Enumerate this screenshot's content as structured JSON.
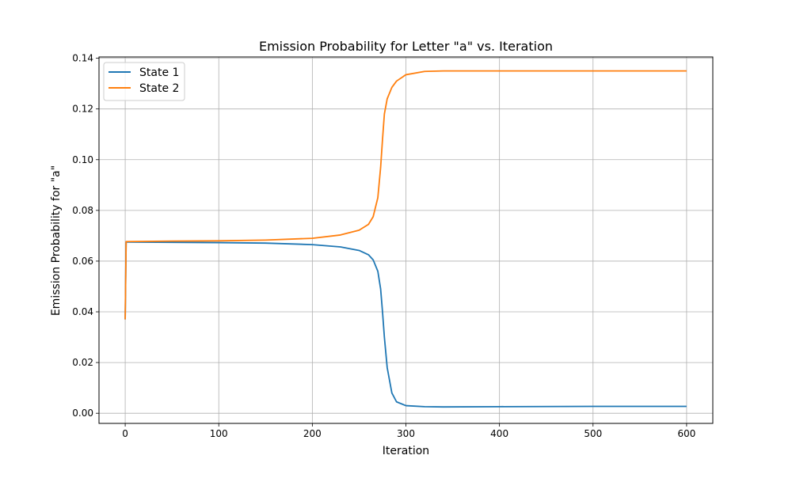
{
  "chart_data": {
    "type": "line",
    "title": "Emission Probability for Letter \"a\" vs. Iteration",
    "xlabel": "Iteration",
    "ylabel": "Emission Probability for \"a\"",
    "xlim": [
      -28,
      628
    ],
    "ylim": [
      -0.004,
      0.1405
    ],
    "xticks": [
      0,
      100,
      200,
      300,
      400,
      500,
      600
    ],
    "xtick_labels": [
      "0",
      "100",
      "200",
      "300",
      "400",
      "500",
      "600"
    ],
    "yticks": [
      0.0,
      0.02,
      0.04,
      0.06,
      0.08,
      0.1,
      0.12,
      0.14
    ],
    "ytick_labels": [
      "0.00",
      "0.02",
      "0.04",
      "0.06",
      "0.08",
      "0.10",
      "0.12",
      "0.14"
    ],
    "grid": true,
    "legend_position": "top-left",
    "series": [
      {
        "name": "State 1",
        "color": "#1f77b4",
        "x": [
          0,
          1,
          2,
          50,
          100,
          150,
          200,
          230,
          250,
          260,
          265,
          270,
          273,
          275,
          277,
          280,
          285,
          290,
          300,
          320,
          340,
          400,
          500,
          600
        ],
        "y": [
          0.037,
          0.0675,
          0.0675,
          0.0674,
          0.0673,
          0.0671,
          0.0665,
          0.0656,
          0.0642,
          0.0625,
          0.0605,
          0.056,
          0.049,
          0.04,
          0.03,
          0.018,
          0.008,
          0.0045,
          0.003,
          0.0026,
          0.0025,
          0.0026,
          0.0027,
          0.0027
        ]
      },
      {
        "name": "State 2",
        "color": "#ff7f0e",
        "x": [
          0,
          1,
          2,
          50,
          100,
          150,
          200,
          230,
          250,
          260,
          265,
          270,
          273,
          275,
          277,
          280,
          285,
          290,
          300,
          320,
          340,
          400,
          500,
          600
        ],
        "y": [
          0.037,
          0.0677,
          0.0677,
          0.0679,
          0.068,
          0.0683,
          0.069,
          0.0703,
          0.0722,
          0.0745,
          0.0775,
          0.085,
          0.097,
          0.108,
          0.118,
          0.124,
          0.1285,
          0.131,
          0.1335,
          0.1348,
          0.135,
          0.135,
          0.135,
          0.135
        ]
      }
    ]
  }
}
